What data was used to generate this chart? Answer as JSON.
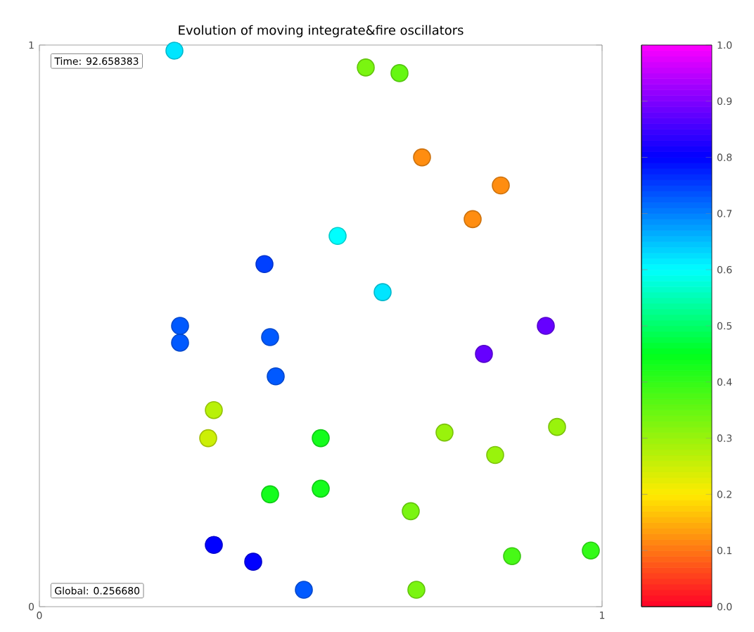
{
  "chart_data": {
    "type": "scatter",
    "title": "Evolution of moving integrate&fire oscillators",
    "annotations": [
      "Time: 92.658383",
      "Global: 0.256680"
    ],
    "xlim": [
      0,
      1
    ],
    "ylim": [
      0,
      1
    ],
    "xticks": [
      0,
      1
    ],
    "yticks": [
      0,
      1
    ],
    "marker": "circle",
    "clim": [
      0,
      1
    ],
    "cticks": [
      {
        "value": 0,
        "label": "0.0"
      },
      {
        "value": 0.1,
        "label": "0.1"
      },
      {
        "value": 0.2,
        "label": "0.2"
      },
      {
        "value": 0.3,
        "label": "0.3"
      },
      {
        "value": 0.4,
        "label": "0.4"
      },
      {
        "value": 0.5,
        "label": "0.5"
      },
      {
        "value": 0.6,
        "label": "0.6"
      },
      {
        "value": 0.7,
        "label": "0.7"
      },
      {
        "value": 0.8,
        "label": "0.8"
      },
      {
        "value": 0.9,
        "label": "0.9"
      },
      {
        "value": 1,
        "label": "1.0"
      }
    ],
    "x": [
      0.58,
      0.64,
      0.68,
      0.82,
      0.77,
      0.53,
      0.4,
      0.61,
      0.25,
      0.25,
      0.41,
      0.42,
      0.79,
      0.9,
      0.31,
      0.3,
      0.5,
      0.72,
      0.92,
      0.81,
      0.41,
      0.5,
      0.66,
      0.31,
      0.38,
      0.47,
      0.67,
      0.84,
      0.98,
      0.24
    ],
    "values": [
      0.96,
      0.95,
      0.8,
      0.75,
      0.69,
      0.66,
      0.61,
      0.56,
      0.5,
      0.47,
      0.48,
      0.41,
      0.45,
      0.5,
      0.35,
      0.3,
      0.3,
      0.31,
      0.32,
      0.27,
      0.2,
      0.21,
      0.17,
      0.11,
      0.08,
      0.03,
      0.03,
      0.09,
      0.1,
      0.99
    ],
    "cvalues": [
      0.33,
      0.35,
      0.12,
      0.12,
      0.12,
      0.6,
      0.75,
      0.62,
      0.73,
      0.73,
      0.73,
      0.73,
      0.88,
      0.88,
      0.27,
      0.25,
      0.43,
      0.3,
      0.3,
      0.3,
      0.43,
      0.43,
      0.33,
      0.8,
      0.8,
      0.73,
      0.33,
      0.38,
      0.4,
      0.62
    ]
  }
}
